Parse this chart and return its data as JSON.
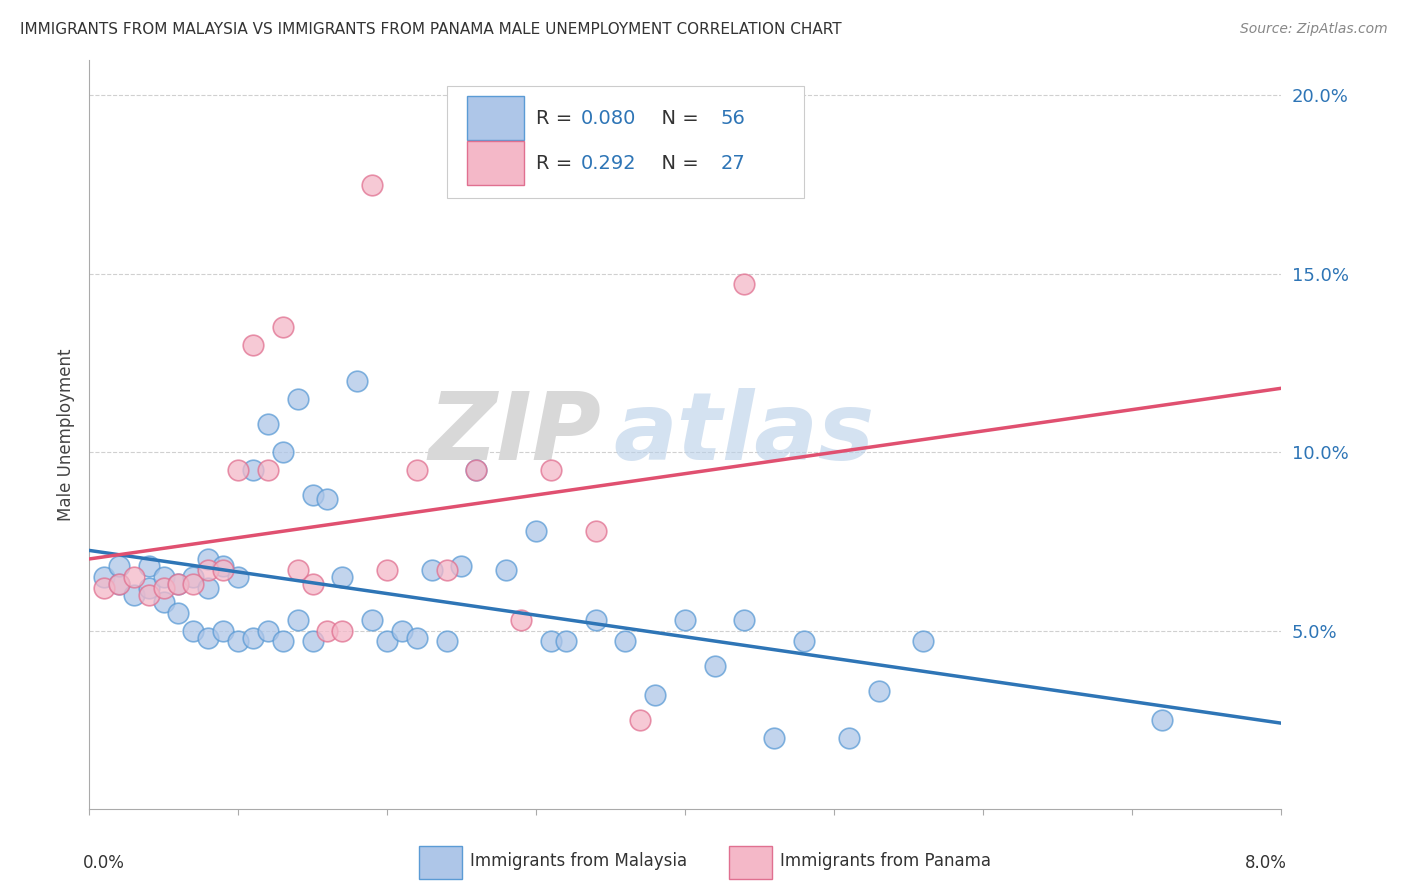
{
  "title": "IMMIGRANTS FROM MALAYSIA VS IMMIGRANTS FROM PANAMA MALE UNEMPLOYMENT CORRELATION CHART",
  "source": "Source: ZipAtlas.com",
  "ylabel": "Male Unemployment",
  "x_min": 0.0,
  "x_max": 0.08,
  "y_min": 0.0,
  "y_max": 0.21,
  "y_ticks": [
    0.05,
    0.1,
    0.15,
    0.2
  ],
  "y_tick_labels": [
    "5.0%",
    "10.0%",
    "15.0%",
    "20.0%"
  ],
  "malaysia_color": "#aec6e8",
  "malaysia_edge": "#5b9bd5",
  "panama_color": "#f4b8c8",
  "panama_edge": "#e07090",
  "malaysia_R": 0.08,
  "malaysia_N": 56,
  "panama_R": 0.292,
  "panama_N": 27,
  "malaysia_line_color": "#2e75b6",
  "panama_line_color": "#e05070",
  "panama_dash_color": "#e0a0b0",
  "legend_R_color": "#2e75b6",
  "legend_N_color": "#2e75b6",
  "malaysia_scatter_x": [
    0.001,
    0.002,
    0.002,
    0.003,
    0.004,
    0.004,
    0.005,
    0.005,
    0.006,
    0.006,
    0.007,
    0.007,
    0.008,
    0.008,
    0.008,
    0.009,
    0.009,
    0.01,
    0.01,
    0.011,
    0.011,
    0.012,
    0.012,
    0.013,
    0.013,
    0.014,
    0.014,
    0.015,
    0.015,
    0.016,
    0.017,
    0.018,
    0.019,
    0.02,
    0.021,
    0.022,
    0.023,
    0.024,
    0.025,
    0.026,
    0.028,
    0.03,
    0.031,
    0.032,
    0.034,
    0.036,
    0.038,
    0.04,
    0.042,
    0.044,
    0.046,
    0.048,
    0.051,
    0.053,
    0.056,
    0.072
  ],
  "malaysia_scatter_y": [
    0.065,
    0.063,
    0.068,
    0.06,
    0.062,
    0.068,
    0.058,
    0.065,
    0.055,
    0.063,
    0.05,
    0.065,
    0.048,
    0.062,
    0.07,
    0.05,
    0.068,
    0.047,
    0.065,
    0.048,
    0.095,
    0.05,
    0.108,
    0.047,
    0.1,
    0.053,
    0.115,
    0.047,
    0.088,
    0.087,
    0.065,
    0.12,
    0.053,
    0.047,
    0.05,
    0.048,
    0.067,
    0.047,
    0.068,
    0.095,
    0.067,
    0.078,
    0.047,
    0.047,
    0.053,
    0.047,
    0.032,
    0.053,
    0.04,
    0.053,
    0.02,
    0.047,
    0.02,
    0.033,
    0.047,
    0.025
  ],
  "panama_scatter_x": [
    0.001,
    0.002,
    0.003,
    0.004,
    0.005,
    0.006,
    0.007,
    0.008,
    0.009,
    0.01,
    0.011,
    0.012,
    0.013,
    0.014,
    0.015,
    0.016,
    0.017,
    0.019,
    0.02,
    0.022,
    0.024,
    0.026,
    0.029,
    0.031,
    0.034,
    0.037,
    0.044
  ],
  "panama_scatter_y": [
    0.062,
    0.063,
    0.065,
    0.06,
    0.062,
    0.063,
    0.063,
    0.067,
    0.067,
    0.095,
    0.13,
    0.095,
    0.135,
    0.067,
    0.063,
    0.05,
    0.05,
    0.175,
    0.067,
    0.095,
    0.067,
    0.095,
    0.053,
    0.095,
    0.078,
    0.025,
    0.147
  ],
  "watermark_zip": "ZIP",
  "watermark_atlas": "atlas",
  "background_color": "#ffffff",
  "grid_color": "#d0d0d0"
}
